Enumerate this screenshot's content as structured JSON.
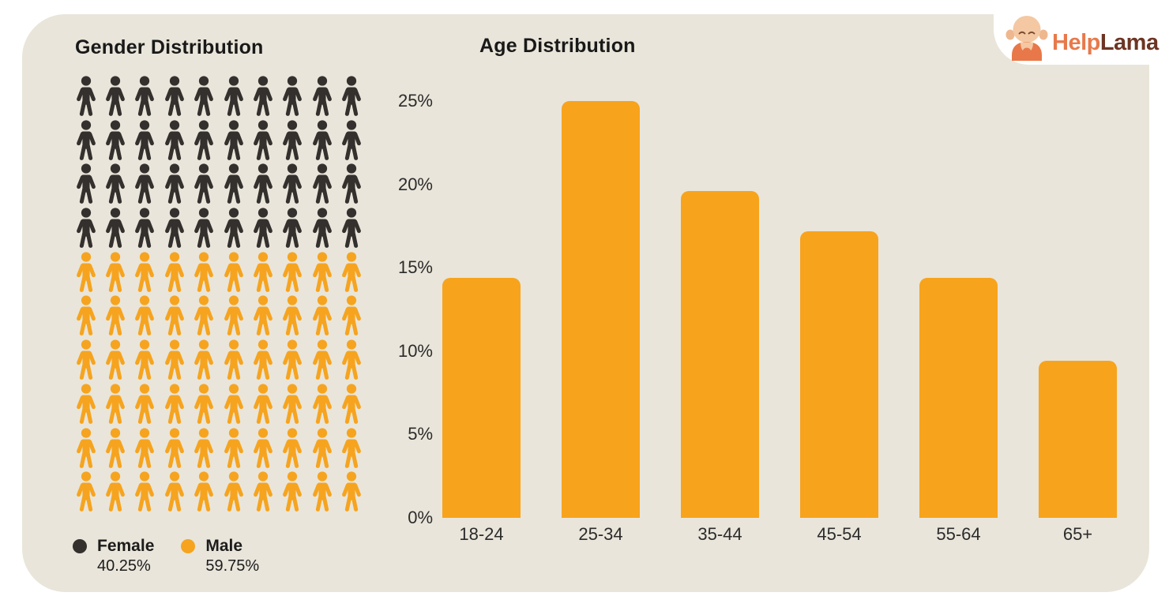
{
  "card": {
    "background": "#E9E5DA"
  },
  "logo": {
    "help": "Help",
    "lama": "Lama",
    "help_color": "#E8794B",
    "lama_color": "#6D3524",
    "mascot_icon": "llama-mascot-icon"
  },
  "gender": {
    "title": "Gender Distribution",
    "grid": {
      "rows": 10,
      "columns": 10
    },
    "female": {
      "label": "Female",
      "value": "40.25%",
      "color": "#33302D",
      "icons": 40
    },
    "male": {
      "label": "Male",
      "value": "59.75%",
      "color": "#F6A41F",
      "icons": 60
    }
  },
  "chart_data": {
    "type": "bar",
    "title": "Age Distribution",
    "categories": [
      "18-24",
      "25-34",
      "35-44",
      "45-54",
      "55-64",
      "65+"
    ],
    "values": [
      14.4,
      25,
      19.6,
      17.2,
      14.4,
      9.4
    ],
    "unit": "%",
    "ylim": [
      0,
      25
    ],
    "yticks": [
      {
        "value": 25,
        "label": "25%"
      },
      {
        "value": 20,
        "label": "20%"
      },
      {
        "value": 15,
        "label": "15%"
      },
      {
        "value": 10,
        "label": "10%"
      },
      {
        "value": 5,
        "label": "5%"
      },
      {
        "value": 0,
        "label": "0%"
      }
    ],
    "bar_color": "#F8A31C",
    "grid": false,
    "legend_position": "none"
  }
}
